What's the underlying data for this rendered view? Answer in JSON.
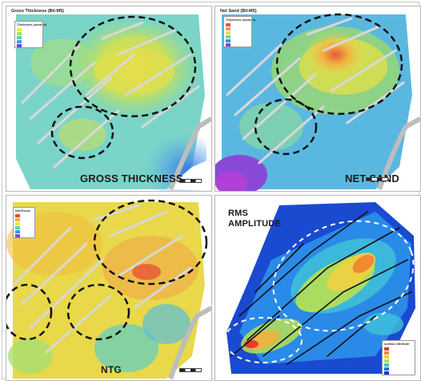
{
  "panels": {
    "top_left": {
      "title": "Gross Thickness (Bil-M5)",
      "label": "GROSS THICKNESS",
      "legend_title": "Thickness (sand m)",
      "legend_colors": [
        "#e8f04a",
        "#a6e05a",
        "#5fd0b0",
        "#3aa0e8",
        "#5a4ad8"
      ]
    },
    "top_right": {
      "title": "Net Sand (Bil-M5)",
      "label": "NET SAND",
      "legend_title": "Thickness (sand m)",
      "legend_colors": [
        "#e8503a",
        "#f0a040",
        "#e8e04a",
        "#6ad8a0",
        "#3a90e8",
        "#7a4ad8"
      ]
    },
    "bottom_left": {
      "label": "NTG",
      "legend_title": "Net/Gross",
      "legend_colors": [
        "#e84a3a",
        "#f0b040",
        "#e8e84a",
        "#6ad0a0",
        "#3a98e8",
        "#7a4ad8"
      ]
    },
    "bottom_right": {
      "label": "RMS AMPLITUDE",
      "legend_title": "surface attribute",
      "legend_colors": [
        "#e83a2a",
        "#f08a30",
        "#f0d040",
        "#b8e050",
        "#40c0d8",
        "#2a70e8",
        "#1a3ad0"
      ]
    }
  }
}
